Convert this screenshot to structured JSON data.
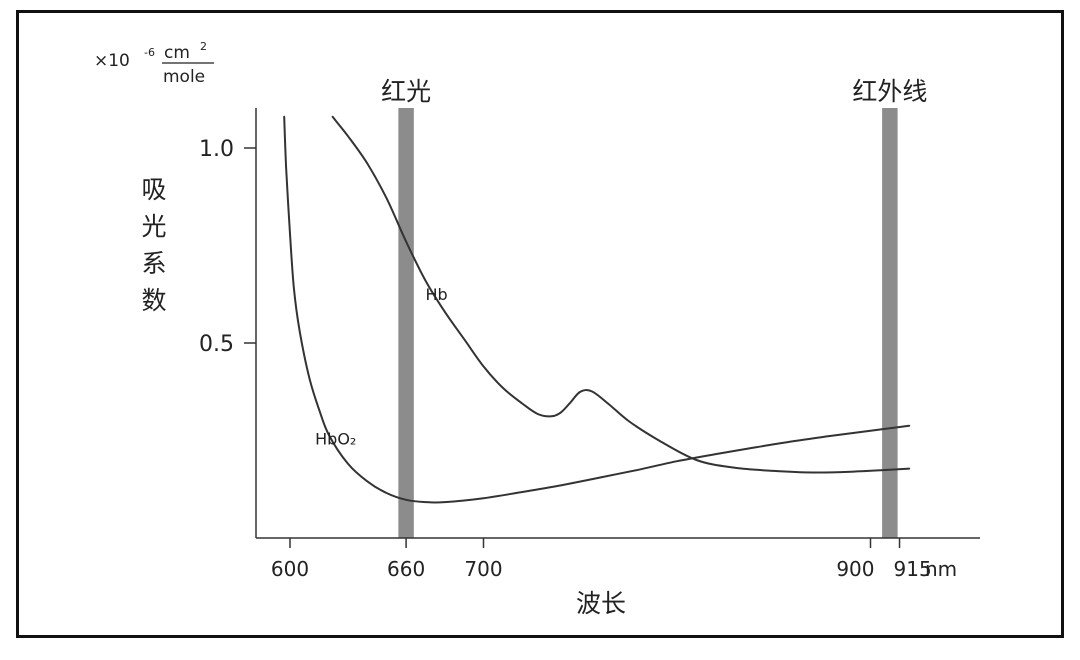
{
  "chart_data": {
    "type": "line",
    "xlabel": "波长",
    "x_unit": "nm",
    "ylabel": "吸光系数",
    "y_unit": {
      "prefix": "×10",
      "exponent": "-6",
      "numerator": "cm",
      "numerator_exponent": "2",
      "denominator": "mole"
    },
    "xlim": [
      585,
      960
    ],
    "ylim": [
      0,
      1.1
    ],
    "x_ticks": [
      600,
      660,
      700,
      900,
      915
    ],
    "y_ticks": [
      0.5,
      1.0
    ],
    "y_tick_labels": [
      "0.5",
      "1.0"
    ],
    "grid": false,
    "bands": [
      {
        "label": "红光",
        "center": 660,
        "width": 8,
        "color": "#8c8c8c"
      },
      {
        "label": "红外线",
        "center": 910,
        "width": 8,
        "color": "#8c8c8c"
      }
    ],
    "series": [
      {
        "name": "Hb",
        "label_at": [
          670,
          0.61
        ],
        "x": [
          622,
          630,
          640,
          650,
          660,
          670,
          680,
          690,
          700,
          710,
          720,
          728,
          735,
          740,
          745,
          750,
          756,
          765,
          775,
          790,
          810,
          830,
          850,
          870,
          890,
          910,
          920
        ],
        "y": [
          1.08,
          1.03,
          0.96,
          0.87,
          0.76,
          0.66,
          0.58,
          0.51,
          0.44,
          0.385,
          0.345,
          0.318,
          0.312,
          0.322,
          0.348,
          0.375,
          0.376,
          0.342,
          0.3,
          0.252,
          0.2,
          0.18,
          0.172,
          0.168,
          0.17,
          0.175,
          0.178
        ]
      },
      {
        "name": "HbO₂",
        "label_at": [
          613,
          0.24
        ],
        "x": [
          597,
          598,
          600,
          602,
          605,
          610,
          615,
          620,
          630,
          640,
          650,
          660,
          670,
          680,
          700,
          720,
          740,
          760,
          780,
          800,
          820,
          840,
          860,
          880,
          900,
          920
        ],
        "y": [
          1.08,
          0.95,
          0.78,
          0.64,
          0.53,
          0.41,
          0.33,
          0.265,
          0.19,
          0.145,
          0.115,
          0.098,
          0.092,
          0.092,
          0.102,
          0.118,
          0.135,
          0.155,
          0.175,
          0.197,
          0.215,
          0.232,
          0.248,
          0.262,
          0.275,
          0.288
        ]
      }
    ]
  }
}
